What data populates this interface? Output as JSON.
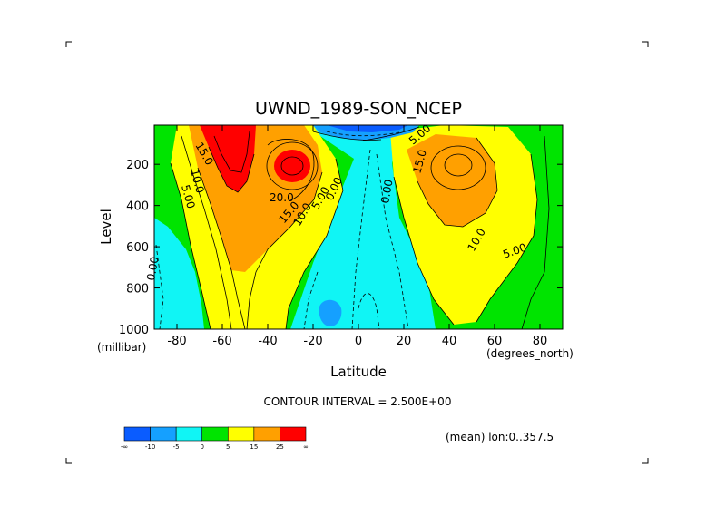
{
  "chart_data": {
    "type": "contour",
    "title": "UWND_1989-SON_NCEP",
    "xlabel": "Latitude",
    "ylabel": "Level",
    "x_units": "(degrees_north)",
    "y_units": "(millibar)",
    "xlim": [
      -90,
      90
    ],
    "ylim": [
      1000,
      10
    ],
    "x_ticks": [
      -80,
      -60,
      -40,
      -20,
      0,
      20,
      40,
      60,
      80
    ],
    "y_ticks": [
      200,
      400,
      600,
      800,
      1000
    ],
    "contour_interval_text": "CONTOUR INTERVAL = 2.500E+00",
    "averaging_note": "(mean) lon:0..357.5",
    "color_levels": [
      {
        "label": "-∞",
        "color": "#0a5cff"
      },
      {
        "label": "-10",
        "color": "#15a0ff"
      },
      {
        "label": "-5",
        "color": "#10f5f5"
      },
      {
        "label": "0",
        "color": "#00e400"
      },
      {
        "label": "5",
        "color": "#ffff00"
      },
      {
        "label": "15",
        "color": "#ffa000"
      },
      {
        "label": "25",
        "color": "#ff0000"
      },
      {
        "label": "∞",
        "color": "#ff0000"
      }
    ],
    "fields": [
      {
        "name": "southern-subtropical-jet",
        "lat": -58,
        "level": 120,
        "max": 32.5
      },
      {
        "name": "southern-secondary-jet",
        "lat": -28,
        "level": 200,
        "max": 30.0
      },
      {
        "name": "northern-jet",
        "lat": 42,
        "level": 200,
        "max": 22.5
      },
      {
        "name": "stratospheric-easterlies",
        "lat": 0,
        "level": 50,
        "min": -15.0
      },
      {
        "name": "surface-easterlies-south",
        "lat": -14,
        "level": 930,
        "min": -7.5
      }
    ],
    "contour_labels": [
      "15.0",
      "10.0",
      "5.00",
      "20.0",
      "15.0",
      "10.0",
      "5.00",
      "0.00",
      "0.00",
      "5.00",
      "15.0",
      "10.0",
      "5.00",
      "0.00"
    ]
  }
}
